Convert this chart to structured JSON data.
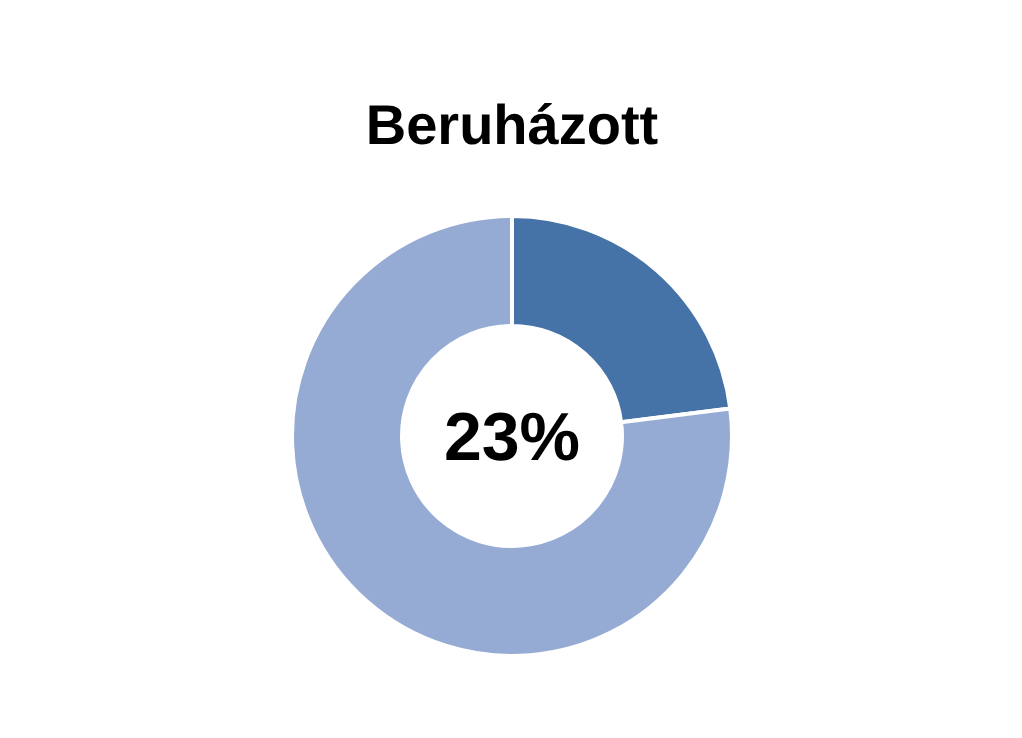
{
  "chart_data": {
    "type": "donut",
    "title": "Beruházott",
    "categories": [
      null,
      null
    ],
    "values": [
      23,
      77
    ],
    "colors": [
      "#4572a7",
      "#95abd4"
    ],
    "annotations": [
      "23%"
    ]
  }
}
